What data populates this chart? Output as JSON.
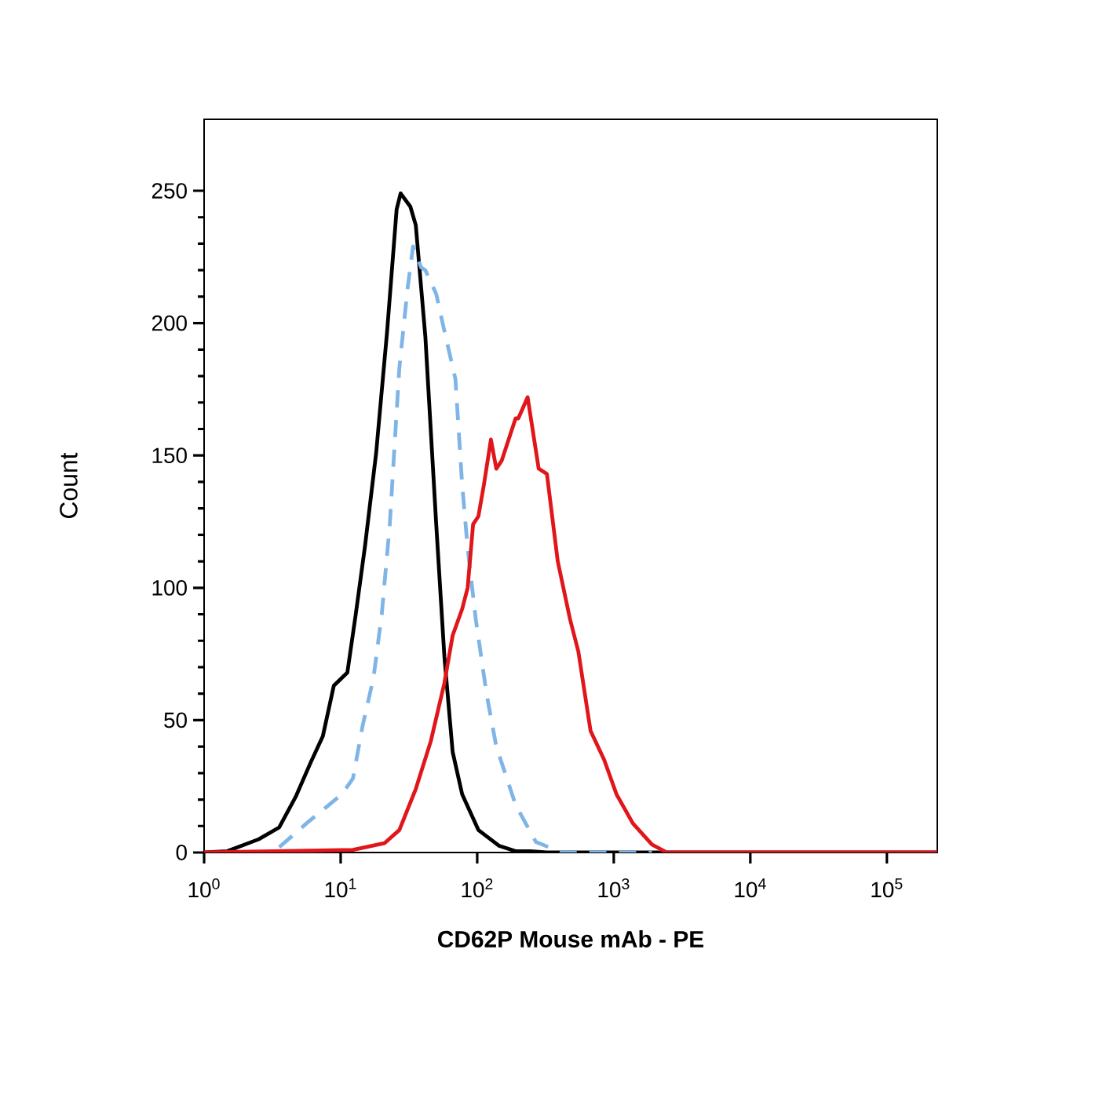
{
  "chart_data": {
    "type": "line",
    "xlabel": "CD62P Mouse mAb - PE",
    "ylabel": "Count",
    "log": "x",
    "marker": "none",
    "xlim": [
      1,
      234000
    ],
    "ylim": [
      0,
      277
    ],
    "xticks": [
      {
        "value": 1,
        "label": "10$^{0}$"
      },
      {
        "value": 10,
        "label": "10$^{1}$"
      },
      {
        "value": 100,
        "label": "10$^{2}$"
      },
      {
        "value": 1000,
        "label": "10$^{3}$"
      },
      {
        "value": 10000,
        "label": "10$^{4}$"
      },
      {
        "value": 100000,
        "label": "10$^{5}$"
      }
    ],
    "yticks": [
      0,
      50,
      100,
      150,
      200,
      250
    ],
    "series": [
      {
        "color": "#000000",
        "line_style": "solid",
        "x": [
          1,
          1.48,
          2.51,
          3.55,
          4.68,
          6.03,
          7.41,
          8.91,
          11.2,
          12.9,
          15.1,
          18.2,
          21.9,
          25.7,
          27.5,
          32.4,
          35.5,
          41.7,
          50.1,
          57.5,
          66.1,
          77.6,
          102,
          145,
          191,
          245,
          324,
          234000
        ],
        "values": [
          0,
          0.5,
          5,
          9.5,
          21,
          34,
          44,
          63,
          68,
          90,
          116,
          151,
          197,
          243,
          249,
          244,
          237,
          195,
          124,
          74,
          38,
          22,
          8.5,
          2.5,
          0.5,
          0.5,
          0,
          0
        ]
      },
      {
        "color": "#7fb5e6",
        "line_style": "dashed",
        "x": [
          3.55,
          5.62,
          10.2,
          12.3,
          14.5,
          17.4,
          20,
          22.9,
          24.5,
          26.9,
          30.9,
          33.9,
          38.9,
          41.7,
          50.1,
          57.5,
          69.2,
          77.6,
          85.1,
          97.7,
          117,
          138,
          191,
          269,
          417,
          1905
        ],
        "values": [
          2,
          11,
          22,
          28,
          48,
          66,
          90,
          124,
          149,
          183,
          213,
          229,
          221,
          220,
          211,
          197,
          179,
          139,
          115,
          88,
          60,
          40,
          18,
          4,
          0,
          0
        ]
      },
      {
        "color": "#e0161b",
        "line_style": "solid",
        "x": [
          1,
          12.3,
          20.9,
          26.9,
          35.5,
          45.7,
          57.5,
          66.1,
          77.6,
          85.1,
          93.3,
          102,
          112,
          126,
          138,
          151,
          191,
          200,
          234,
          282,
          324,
          389,
          479,
          550,
          676,
          851,
          1047,
          1380,
          1905,
          2455,
          234000
        ],
        "values": [
          0,
          1,
          3.5,
          8.5,
          24,
          42,
          64,
          82,
          92,
          100,
          124,
          127,
          139,
          156,
          145,
          148,
          164,
          164,
          172,
          145,
          143,
          110,
          88,
          76,
          46,
          35,
          22,
          11,
          3,
          0,
          0
        ]
      }
    ]
  }
}
